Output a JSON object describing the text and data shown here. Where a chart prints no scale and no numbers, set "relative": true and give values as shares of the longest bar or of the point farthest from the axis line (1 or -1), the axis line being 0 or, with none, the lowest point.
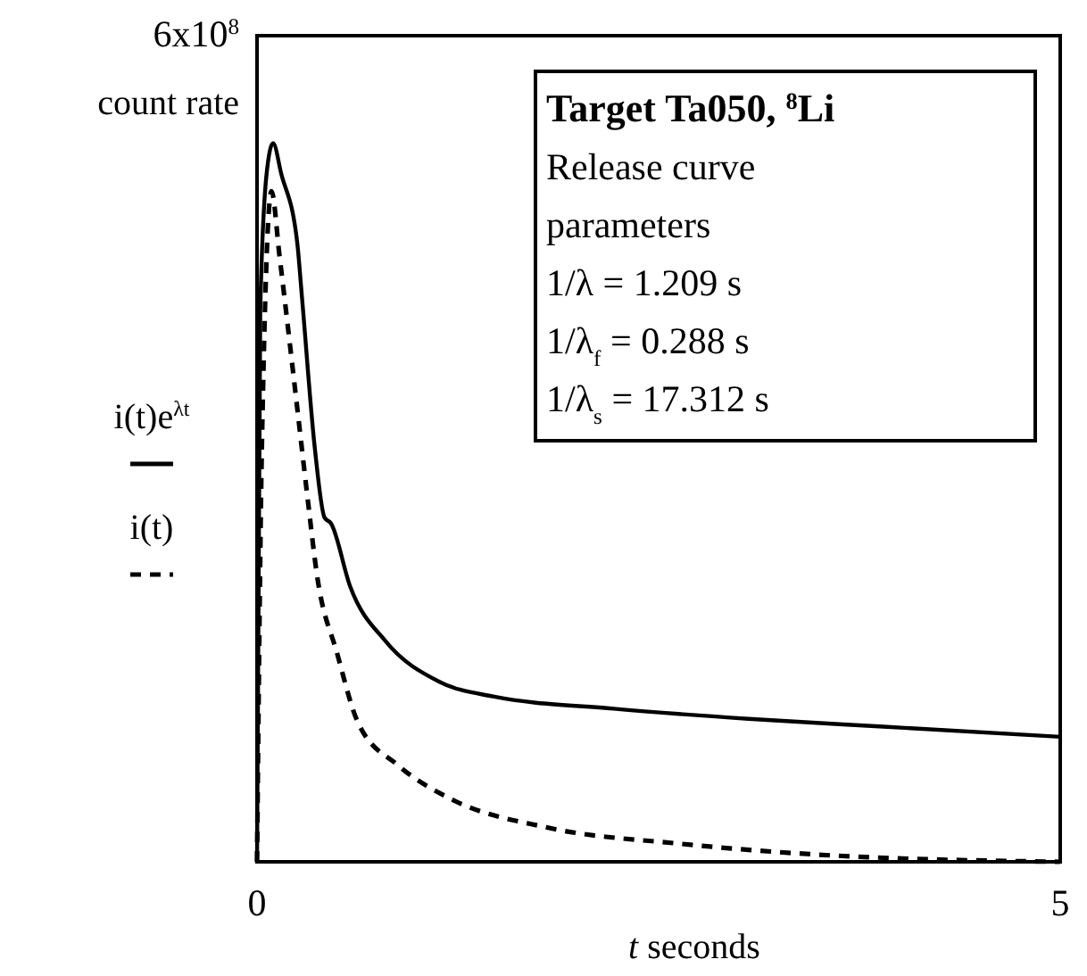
{
  "chart_data": {
    "type": "line",
    "relative": true,
    "ylabel": "count rate",
    "xlabel": "t seconds",
    "xlim": [
      0,
      5
    ],
    "xticks": [
      0,
      5
    ],
    "legend": "left",
    "annotations": [
      "6x10$^{8}$",
      "Target Ta050, $^{8}$Li",
      "Release curve",
      "parameters",
      "1/λ = 1.209 s",
      "1/λ$_{f}$ = 0.288 s",
      "1/λ$_{s}$ = 17.312 s"
    ],
    "series": [
      {
        "name": "i(t)e$^{λt}$",
        "color": "#000000",
        "line_style": "solid",
        "x": [
          0,
          0.02,
          0.06,
          0.1,
          0.15,
          0.25,
          0.28,
          0.36,
          0.42,
          0.46,
          0.58,
          0.8,
          1.13,
          1.47,
          2.22,
          3.06,
          3.9,
          5
        ],
        "values": [
          0,
          0.766,
          0.958,
          1,
          0.958,
          0.862,
          0.785,
          0.575,
          0.479,
          0.471,
          0.383,
          0.307,
          0.251,
          0.23,
          0.213,
          0.199,
          0.188,
          0.174
        ]
      },
      {
        "name": "i(t)",
        "color": "#000000",
        "line_style": "dashed",
        "x": [
          0,
          0.03,
          0.09,
          0.14,
          0.25,
          0.32,
          0.37,
          0.5,
          0.63,
          0.88,
          1.22,
          1.8,
          2.64,
          3.49,
          5
        ],
        "values": [
          0,
          0.575,
          0.933,
          0.843,
          0.632,
          0.496,
          0.404,
          0.289,
          0.193,
          0.134,
          0.086,
          0.048,
          0.025,
          0.01,
          0
        ]
      }
    ]
  }
}
